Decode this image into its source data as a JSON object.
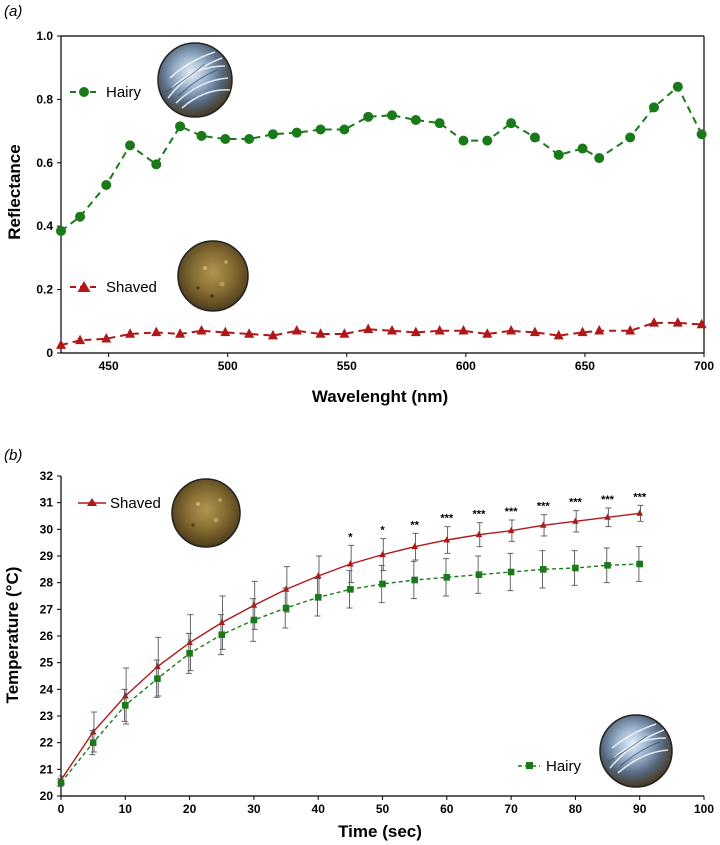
{
  "panel_a_label": "(a)",
  "panel_b_label": "(b)",
  "colors": {
    "hairy": "#1a7a1a",
    "shaved": "#b01818"
  },
  "chart_data": [
    {
      "type": "line",
      "panel": "(a)",
      "xlabel": "Wavelenght (nm)",
      "ylabel": "Reflectance",
      "xlim": [
        430,
        700
      ],
      "ylim": [
        0,
        1.0
      ],
      "xticks": [
        450,
        500,
        550,
        600,
        650,
        700
      ],
      "yticks": [
        0,
        0.2,
        0.4,
        0.6,
        0.8,
        1.0
      ],
      "ytick_labels": [
        "0",
        "0.2",
        "0.4",
        "0.6",
        "0.8",
        "1.0"
      ],
      "grid": false,
      "legend_placement": "left, beside each series",
      "series": [
        {
          "name": "Hairy",
          "color": "#1a7a1a",
          "marker": "circle",
          "line": "dashed",
          "x": [
            430,
            438,
            449,
            459,
            470,
            480,
            489,
            499,
            509,
            519,
            529,
            539,
            549,
            559,
            569,
            579,
            589,
            599,
            609,
            619,
            629,
            639,
            649,
            656,
            669,
            679,
            689,
            699
          ],
          "y": [
            0.385,
            0.43,
            0.53,
            0.655,
            0.595,
            0.715,
            0.685,
            0.675,
            0.675,
            0.69,
            0.695,
            0.705,
            0.705,
            0.745,
            0.75,
            0.735,
            0.725,
            0.67,
            0.67,
            0.725,
            0.68,
            0.625,
            0.645,
            0.615,
            0.68,
            0.775,
            0.84,
            0.69
          ]
        },
        {
          "name": "Shaved",
          "color": "#b01818",
          "marker": "triangle",
          "line": "dashed",
          "x": [
            430,
            438,
            449,
            459,
            470,
            480,
            489,
            499,
            509,
            519,
            529,
            539,
            549,
            559,
            569,
            579,
            589,
            599,
            609,
            619,
            629,
            639,
            649,
            656,
            669,
            679,
            689,
            699
          ],
          "y": [
            0.025,
            0.04,
            0.045,
            0.06,
            0.065,
            0.06,
            0.07,
            0.065,
            0.06,
            0.055,
            0.07,
            0.06,
            0.06,
            0.075,
            0.07,
            0.065,
            0.07,
            0.07,
            0.06,
            0.07,
            0.065,
            0.055,
            0.065,
            0.07,
            0.07,
            0.095,
            0.095,
            0.09
          ]
        }
      ]
    },
    {
      "type": "line",
      "panel": "(b)",
      "xlabel": "Time (sec)",
      "ylabel": "Temperature (°C)",
      "xlim": [
        0,
        100
      ],
      "ylim": [
        20,
        32
      ],
      "xticks": [
        0,
        10,
        20,
        30,
        40,
        50,
        60,
        70,
        80,
        90,
        100
      ],
      "yticks": [
        20,
        21,
        22,
        23,
        24,
        25,
        26,
        27,
        28,
        29,
        30,
        31,
        32
      ],
      "grid": false,
      "legend_placement": "shaved top-left, hairy bottom-right",
      "significance": [
        {
          "x": 45,
          "label": "*"
        },
        {
          "x": 50,
          "label": "*"
        },
        {
          "x": 55,
          "label": "**"
        },
        {
          "x": 60,
          "label": "***"
        },
        {
          "x": 65,
          "label": "***"
        },
        {
          "x": 70,
          "label": "***"
        },
        {
          "x": 75,
          "label": "***"
        },
        {
          "x": 80,
          "label": "***"
        },
        {
          "x": 85,
          "label": "***"
        },
        {
          "x": 90,
          "label": "***"
        }
      ],
      "series": [
        {
          "name": "Shaved",
          "color": "#b01818",
          "marker": "triangle",
          "line": "solid",
          "x": [
            0,
            5,
            10,
            15,
            20,
            25,
            30,
            35,
            40,
            45,
            50,
            55,
            60,
            65,
            70,
            75,
            80,
            85,
            90
          ],
          "y": [
            20.6,
            22.4,
            23.75,
            24.85,
            25.75,
            26.5,
            27.15,
            27.75,
            28.25,
            28.7,
            29.05,
            29.35,
            29.6,
            29.8,
            29.95,
            30.15,
            30.3,
            30.45,
            30.6
          ],
          "error": [
            0.15,
            0.75,
            1.05,
            1.1,
            1.05,
            1.0,
            0.9,
            0.85,
            0.75,
            0.7,
            0.6,
            0.5,
            0.5,
            0.45,
            0.4,
            0.4,
            0.4,
            0.35,
            0.3
          ]
        },
        {
          "name": "Hairy",
          "color": "#1a7a1a",
          "marker": "square",
          "line": "dashed",
          "x": [
            0,
            5,
            10,
            15,
            20,
            25,
            30,
            35,
            40,
            45,
            50,
            55,
            60,
            65,
            70,
            75,
            80,
            85,
            90
          ],
          "y": [
            20.5,
            22.0,
            23.4,
            24.4,
            25.35,
            26.05,
            26.6,
            27.05,
            27.45,
            27.75,
            27.95,
            28.1,
            28.2,
            28.3,
            28.4,
            28.5,
            28.55,
            28.65,
            28.7
          ],
          "error": [
            0.15,
            0.45,
            0.6,
            0.7,
            0.75,
            0.75,
            0.8,
            0.75,
            0.7,
            0.7,
            0.7,
            0.7,
            0.7,
            0.7,
            0.7,
            0.7,
            0.65,
            0.65,
            0.65
          ]
        }
      ]
    }
  ]
}
